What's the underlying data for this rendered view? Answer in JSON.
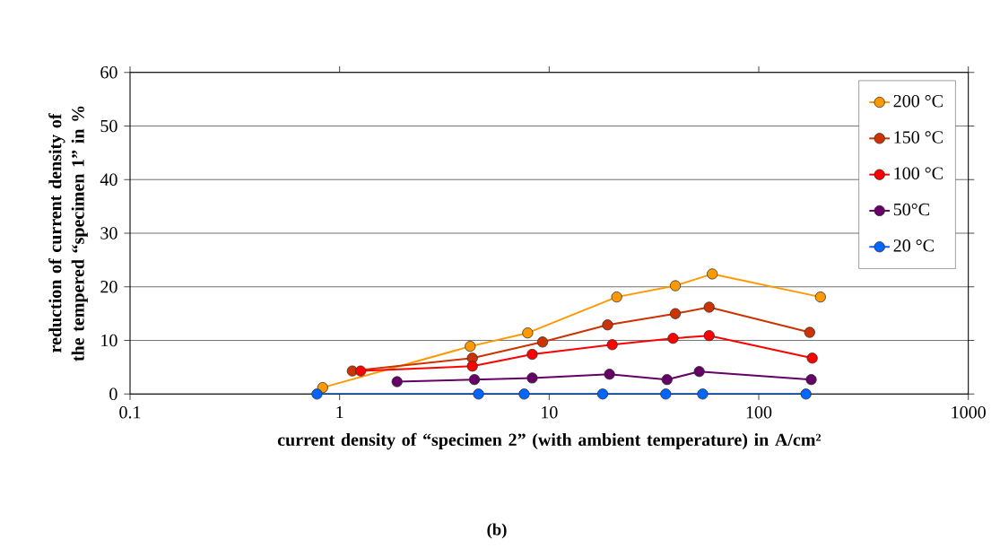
{
  "chart_data": {
    "type": "line",
    "xlabel": "current density of “specimen 2” (with ambient temperature) in A/cm²",
    "ylabel": "reduction of current density of the tempered “specimen 1” in %",
    "log": "x",
    "xlim": [
      0.1,
      1000
    ],
    "xticks": [
      0.1,
      1,
      10,
      100,
      1000
    ],
    "ylim": [
      0,
      60
    ],
    "yticks": [
      0,
      10,
      20,
      30,
      40,
      50,
      60
    ],
    "grid": "y",
    "legend": "top right",
    "marker": "circle",
    "line_style": "solid",
    "series": [
      {
        "name": "200 °C",
        "color": "#ff9900",
        "x": [
          0.83,
          4.2,
          7.9,
          21,
          40,
          60,
          197
        ],
        "values": [
          1.2,
          8.9,
          11.4,
          18.1,
          20.2,
          22.4,
          18.1
        ]
      },
      {
        "name": "150 °C",
        "color": "#cc3300",
        "x": [
          1.15,
          4.3,
          9.3,
          19,
          40,
          58,
          175
        ],
        "values": [
          4.3,
          6.7,
          9.7,
          12.9,
          15.0,
          16.2,
          11.5
        ]
      },
      {
        "name": "100 °C",
        "color": "#ff0000",
        "x": [
          1.26,
          4.3,
          8.3,
          20,
          39,
          58,
          180
        ],
        "values": [
          4.3,
          5.2,
          7.4,
          9.2,
          10.4,
          10.9,
          6.7
        ]
      },
      {
        "name": "50°C",
        "color": "#660066",
        "x": [
          1.88,
          4.4,
          8.3,
          19.4,
          36.5,
          52,
          178
        ],
        "values": [
          2.3,
          2.7,
          3.0,
          3.7,
          2.7,
          4.2,
          2.7
        ]
      },
      {
        "name": "20 °C",
        "color": "#0066ff",
        "x": [
          0.78,
          4.6,
          7.6,
          18,
          36,
          54,
          168
        ],
        "values": [
          0,
          0,
          0,
          0,
          0,
          0,
          0
        ]
      }
    ],
    "annotations": [
      "(b)"
    ]
  }
}
